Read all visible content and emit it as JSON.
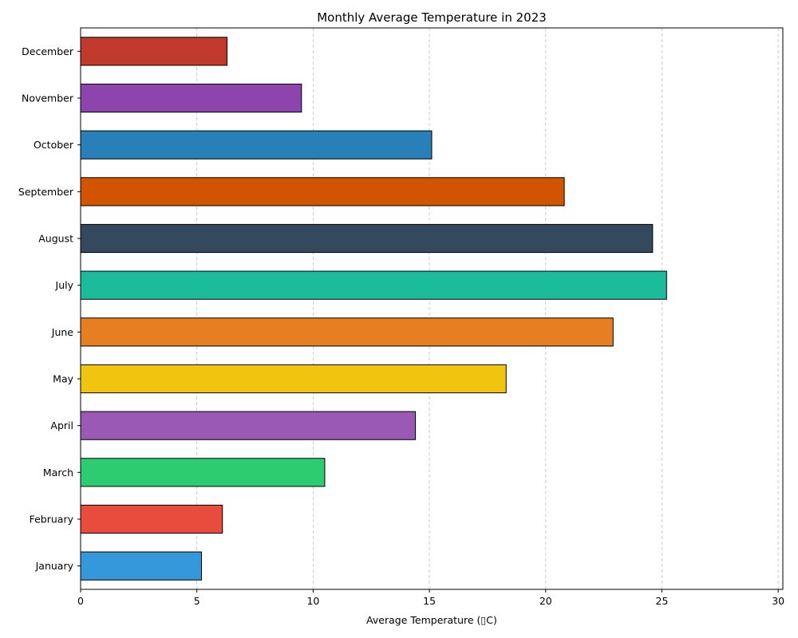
{
  "chart_data": {
    "type": "bar",
    "orientation": "horizontal",
    "title": "Monthly Average Temperature in 2023",
    "xlabel": "Average Temperature (▯C)",
    "ylabel": "",
    "xlim": [
      0,
      30.2
    ],
    "xticks": [
      0,
      5,
      10,
      15,
      20,
      25,
      30
    ],
    "grid": {
      "x": true,
      "y": false,
      "style": "dashed"
    },
    "categories": [
      "January",
      "February",
      "March",
      "April",
      "May",
      "June",
      "July",
      "August",
      "September",
      "October",
      "November",
      "December"
    ],
    "values": [
      5.2,
      6.1,
      10.5,
      14.4,
      18.3,
      22.9,
      25.2,
      24.6,
      20.8,
      15.1,
      9.5,
      6.3
    ],
    "colors": [
      "#3498db",
      "#e74c3c",
      "#2ecc71",
      "#9b59b6",
      "#f1c40f",
      "#e67e22",
      "#1abc9c",
      "#34495e",
      "#d35400",
      "#2980b9",
      "#8e44ad",
      "#c0392b"
    ],
    "bar_edge_color": "#000000"
  }
}
